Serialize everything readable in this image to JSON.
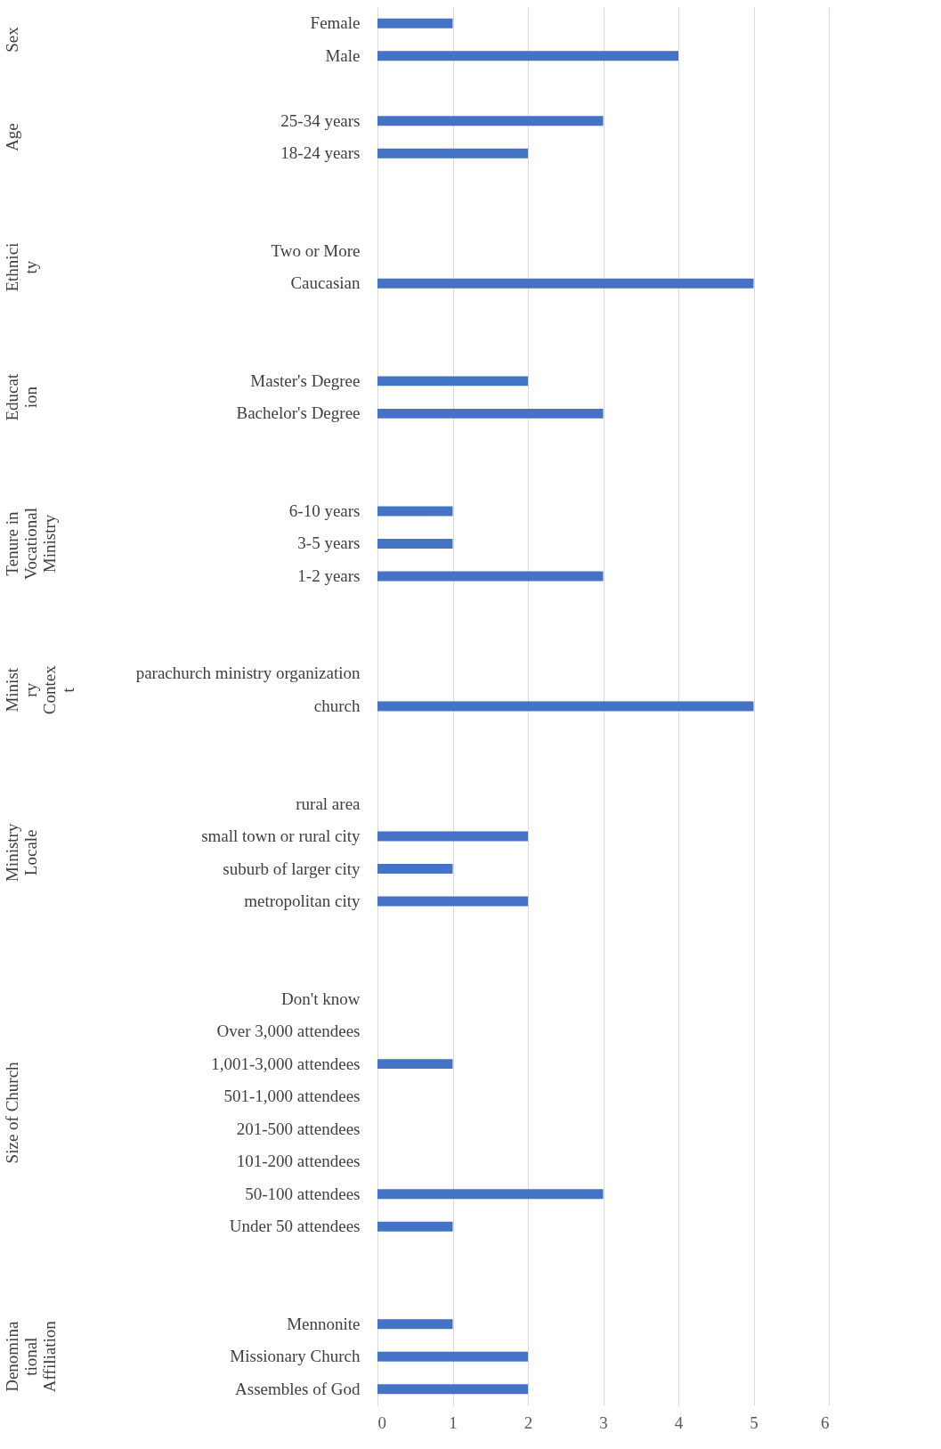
{
  "chart_data": {
    "type": "bar",
    "orientation": "horizontal",
    "categories": [
      "Female",
      "Male",
      null,
      "25-34 years",
      "18-24 years",
      null,
      null,
      "Two or More",
      "Caucasian",
      null,
      null,
      "Master's Degree",
      "Bachelor's Degree",
      null,
      null,
      "6-10 years",
      "3-5 years",
      "1-2 years",
      null,
      null,
      "parachurch ministry organization",
      "church",
      null,
      null,
      "rural area",
      "small town or rural city",
      "suburb of larger city",
      "metropolitan city",
      null,
      null,
      "Don't know",
      "Over 3,000 attendees",
      "1,001-3,000 attendees",
      "501-1,000 attendees",
      "201-500 attendees",
      "101-200 attendees",
      "50-100 attendees",
      "Under 50 attendees",
      null,
      null,
      "Mennonite",
      "Missionary Church",
      "Assembles of God"
    ],
    "values": [
      1,
      4,
      null,
      3,
      2,
      null,
      null,
      null,
      5,
      null,
      null,
      2,
      3,
      null,
      null,
      1,
      1,
      3,
      null,
      null,
      null,
      5,
      null,
      null,
      null,
      2,
      1,
      2,
      null,
      null,
      null,
      null,
      1,
      null,
      null,
      null,
      3,
      1,
      null,
      null,
      1,
      2,
      2
    ],
    "color": "#4472c4",
    "xlim": [
      0,
      6
    ],
    "xticks": [
      0,
      1,
      2,
      3,
      4,
      5,
      6
    ],
    "grid": "x",
    "annotations": [
      "Sex",
      "Age",
      "Ethnici\nty",
      "Educat\nion",
      "Tenure in\nVocational\nMinistry",
      "Minist\nry\nContex\nt",
      "Ministry\nLocale",
      "Size of Church",
      "Denomina\ntional\nAffiliation"
    ]
  }
}
